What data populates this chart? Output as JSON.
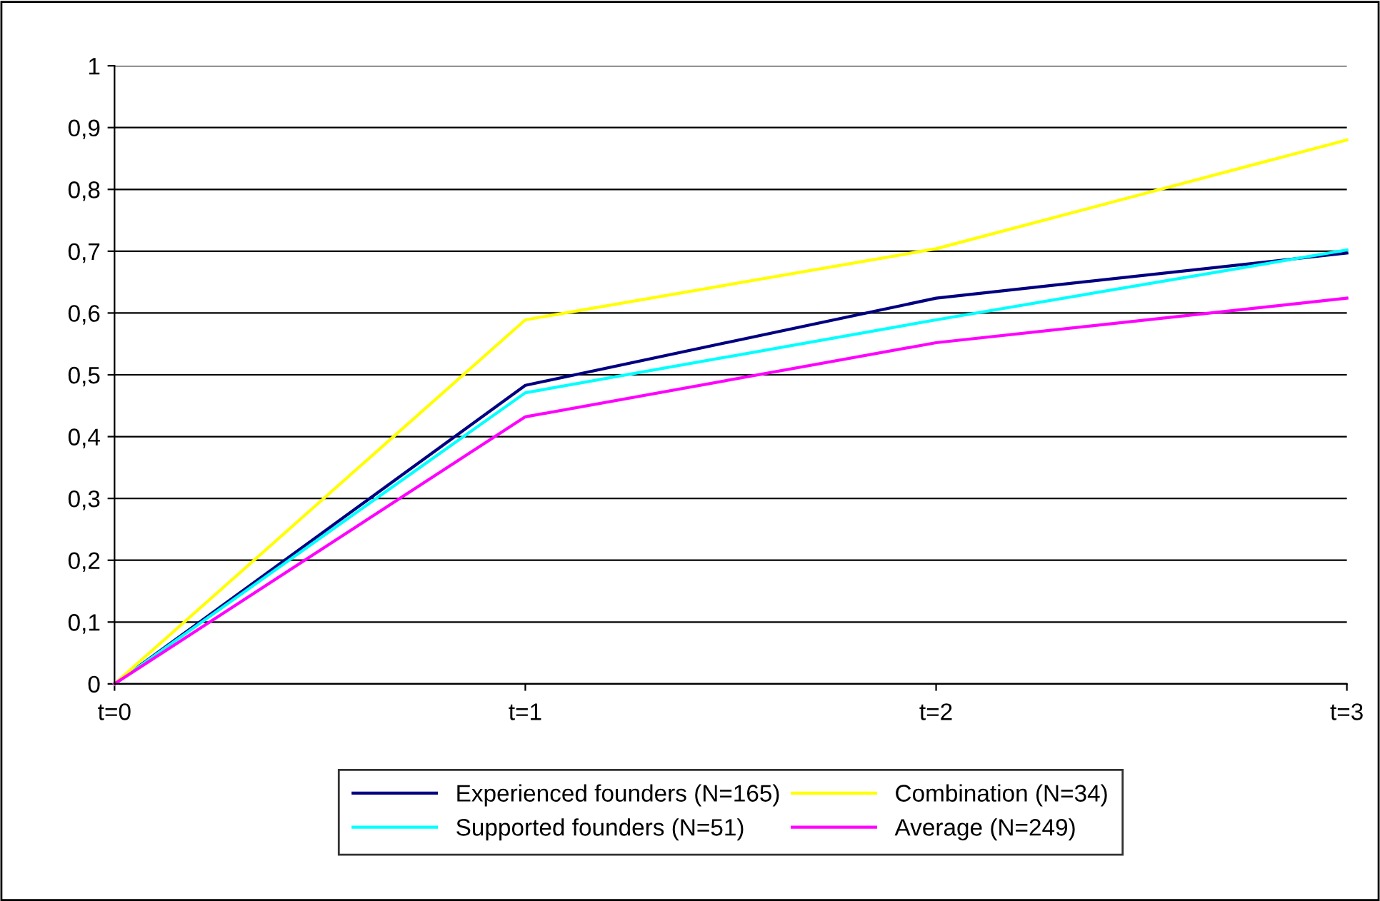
{
  "chart_data": {
    "type": "line",
    "categories": [
      "t=0",
      "t=1",
      "t=2",
      "t=3"
    ],
    "series": [
      {
        "name": "Experienced founders (N=165)",
        "color": "#000080",
        "values": [
          0,
          0.483,
          0.624,
          0.697
        ]
      },
      {
        "name": "Supported founders (N=51)",
        "color": "#00ffff",
        "values": [
          0,
          0.471,
          0.589,
          0.702
        ]
      },
      {
        "name": "Combination (N=34)",
        "color": "#ffff00",
        "values": [
          0,
          0.589,
          0.704,
          0.88
        ]
      },
      {
        "name": "Average (N=249)",
        "color": "#ff00ff",
        "values": [
          0,
          0.432,
          0.552,
          0.624
        ]
      }
    ],
    "ylim": [
      0,
      1
    ],
    "yticks": [
      0,
      {
        "value": 0.1,
        "label": "0,1"
      },
      {
        "value": 0.2,
        "label": "0,2"
      },
      {
        "value": 0.3,
        "label": "0,3"
      },
      {
        "value": 0.4,
        "label": "0,4"
      },
      {
        "value": 0.5,
        "label": "0,5"
      },
      {
        "value": 0.6,
        "label": "0,6"
      },
      {
        "value": 0.7,
        "label": "0,7"
      },
      {
        "value": 0.8,
        "label": "0,8"
      },
      {
        "value": 0.9,
        "label": "0,9"
      },
      1
    ],
    "grid": "y",
    "legend": "bottom",
    "marker": "none",
    "line_style": "solid"
  }
}
